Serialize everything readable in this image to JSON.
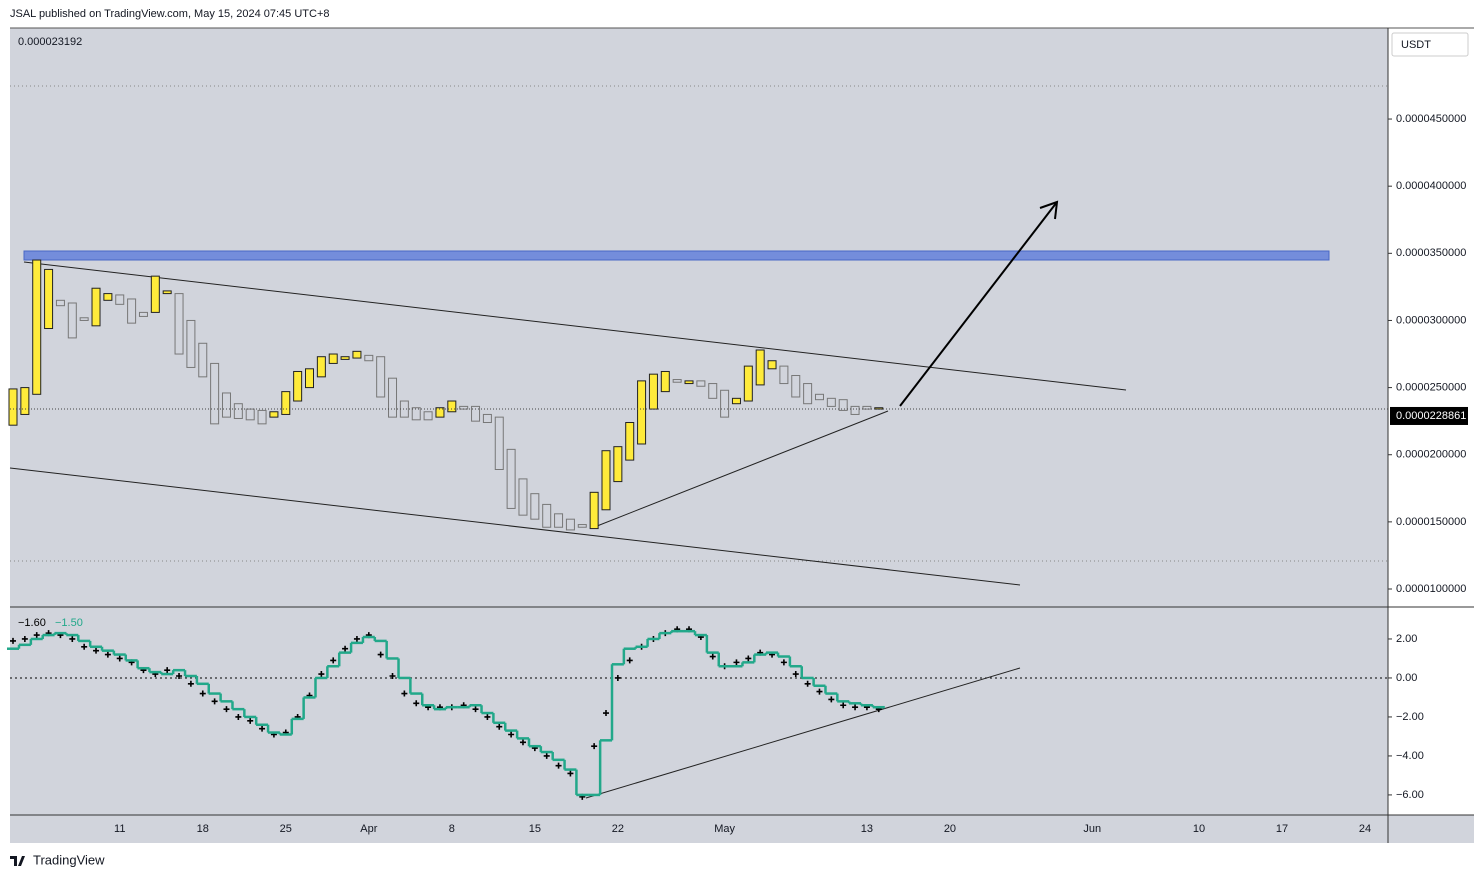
{
  "header": "JSAL published on TradingView.com, May 15, 2024 07:45 UTC+8",
  "footer": "TradingView",
  "chart_data": [
    {
      "type": "candlestick",
      "ohlc_text": "0.000023192",
      "currency": "USDT",
      "categories": [
        null,
        null,
        null,
        null,
        null,
        null,
        null,
        null,
        null,
        "11",
        null,
        null,
        null,
        null,
        null,
        null,
        "18",
        null,
        null,
        null,
        null,
        null,
        null,
        "25",
        null,
        null,
        null,
        null,
        null,
        null,
        "Apr",
        null,
        null,
        null,
        null,
        null,
        null,
        "8",
        null,
        null,
        null,
        null,
        null,
        null,
        "15",
        null,
        null,
        null,
        null,
        null,
        null,
        "22",
        null,
        null,
        null,
        null,
        null,
        null,
        null,
        null,
        "May",
        null,
        null,
        null,
        null,
        null,
        null,
        null,
        null,
        null,
        null,
        null,
        "13",
        null
      ],
      "future_labels": [
        "20",
        "Jun",
        "10",
        "17",
        "24"
      ],
      "open": [
        2.22e-05,
        2.3e-05,
        2.45e-05,
        2.94e-05,
        3.15e-05,
        3.13e-05,
        3.02e-05,
        2.96e-05,
        3.15e-05,
        3.19e-05,
        3.16e-05,
        3.06e-05,
        3.06e-05,
        3.2e-05,
        3.2e-05,
        3e-05,
        2.83e-05,
        2.68e-05,
        2.46e-05,
        2.38e-05,
        2.34e-05,
        2.33e-05,
        2.28e-05,
        2.3e-05,
        2.4e-05,
        2.5e-05,
        2.58e-05,
        2.68e-05,
        2.71e-05,
        2.72e-05,
        2.74e-05,
        2.73e-05,
        2.57e-05,
        2.4e-05,
        2.35e-05,
        2.32e-05,
        2.28e-05,
        2.32e-05,
        2.36e-05,
        2.36e-05,
        2.3e-05,
        2.28e-05,
        2.04e-05,
        1.82e-05,
        1.71e-05,
        1.63e-05,
        1.56e-05,
        1.52e-05,
        1.48e-05,
        1.45e-05,
        1.59e-05,
        1.8e-05,
        1.96e-05,
        2.08e-05,
        2.34e-05,
        2.47e-05,
        2.56e-05,
        2.53e-05,
        2.55e-05,
        2.53e-05,
        2.48e-05,
        2.38e-05,
        2.4e-05,
        2.52e-05,
        2.64e-05,
        2.66e-05,
        2.59e-05,
        2.53e-05,
        2.45e-05,
        2.42e-05,
        2.41e-05,
        2.36e-05,
        2.36e-05,
        2.34e-05
      ],
      "close": [
        2.49e-05,
        2.5e-05,
        3.45e-05,
        3.38e-05,
        3.11e-05,
        2.87e-05,
        3e-05,
        3.24e-05,
        3.2e-05,
        3.12e-05,
        2.98e-05,
        3.03e-05,
        3.33e-05,
        3.22e-05,
        2.75e-05,
        2.65e-05,
        2.58e-05,
        2.23e-05,
        2.28e-05,
        2.27e-05,
        2.26e-05,
        2.23e-05,
        2.32e-05,
        2.47e-05,
        2.62e-05,
        2.64e-05,
        2.73e-05,
        2.75e-05,
        2.73e-05,
        2.77e-05,
        2.7e-05,
        2.43e-05,
        2.28e-05,
        2.28e-05,
        2.26e-05,
        2.26e-05,
        2.35e-05,
        2.4e-05,
        2.34e-05,
        2.25e-05,
        2.24e-05,
        1.89e-05,
        1.6e-05,
        1.55e-05,
        1.52e-05,
        1.46e-05,
        1.46e-05,
        1.44e-05,
        1.46e-05,
        1.72e-05,
        2.03e-05,
        2.06e-05,
        2.24e-05,
        2.55e-05,
        2.6e-05,
        2.62e-05,
        2.54e-05,
        2.55e-05,
        2.51e-05,
        2.42e-05,
        2.28e-05,
        2.42e-05,
        2.66e-05,
        2.78e-05,
        2.7e-05,
        2.53e-05,
        2.43e-05,
        2.38e-05,
        2.41e-05,
        2.36e-05,
        2.33e-05,
        2.3e-05,
        2.34e-05,
        2.35e-05
      ],
      "up_color": "#ffeb3b",
      "down_color": "#d1d4dc",
      "ylim": [
        8.66e-06,
        5.178e-05
      ],
      "yticks": [
        {
          "value": 1e-05,
          "label": "0.0000100000"
        },
        {
          "value": 1.5e-05,
          "label": "0.0000150000"
        },
        {
          "value": 2e-05,
          "label": "0.0000200000"
        },
        {
          "value": 2.5e-05,
          "label": "0.0000250000"
        },
        {
          "value": 3e-05,
          "label": "0.0000300000"
        },
        {
          "value": 3.5e-05,
          "label": "0.0000350000"
        },
        {
          "value": 4e-05,
          "label": "0.0000400000"
        },
        {
          "value": 4.5e-05,
          "label": "0.0000450000"
        }
      ],
      "last_price": {
        "value": 2.28861e-05,
        "label": "0.0000228861"
      },
      "grid": false
    },
    {
      "type": "step",
      "series": [
        {
          "color": "#000000",
          "style": "cross",
          "legend_value": "−1.60",
          "values": [
            1.9,
            2.0,
            2.2,
            2.3,
            2.2,
            2.0,
            1.6,
            1.4,
            1.2,
            1.0,
            0.8,
            0.4,
            0.2,
            0.4,
            0.1,
            -0.3,
            -0.8,
            -1.2,
            -1.6,
            -2.0,
            -2.2,
            -2.6,
            -2.9,
            -2.8,
            -2.0,
            -0.9,
            0.2,
            0.9,
            1.5,
            2.0,
            2.2,
            1.2,
            0.1,
            -0.8,
            -1.3,
            -1.5,
            -1.5,
            -1.5,
            -1.4,
            -1.6,
            -2.0,
            -2.5,
            -2.9,
            -3.3,
            -3.6,
            -4.0,
            -4.5,
            -4.9,
            -6.1,
            -3.5,
            -1.8,
            0.0,
            0.9,
            1.6,
            2.0,
            2.3,
            2.5,
            2.5,
            2.1,
            1.1,
            0.6,
            0.8,
            1.0,
            1.3,
            1.2,
            0.8,
            0.2,
            -0.3,
            -0.7,
            -1.1,
            -1.4,
            -1.5,
            -1.5,
            -1.6
          ]
        },
        {
          "color": "#22a88a",
          "style": "step",
          "legend_value": "−1.50",
          "values": [
            1.5,
            1.7,
            2.0,
            2.2,
            2.3,
            2.2,
            1.9,
            1.6,
            1.4,
            1.2,
            0.9,
            0.5,
            0.3,
            0.2,
            0.4,
            0.1,
            -0.3,
            -0.8,
            -1.2,
            -1.6,
            -2.0,
            -2.4,
            -2.8,
            -2.9,
            -2.1,
            -1.0,
            0.0,
            0.6,
            1.3,
            1.8,
            2.1,
            1.9,
            1.0,
            0.0,
            -0.8,
            -1.4,
            -1.6,
            -1.5,
            -1.5,
            -1.4,
            -1.8,
            -2.3,
            -2.7,
            -3.1,
            -3.5,
            -3.8,
            -4.2,
            -4.7,
            -6.0,
            -6.0,
            -3.2,
            0.7,
            1.5,
            1.6,
            2.0,
            2.3,
            2.4,
            2.4,
            2.2,
            1.3,
            0.6,
            0.6,
            0.8,
            1.2,
            1.3,
            1.1,
            0.6,
            0.0,
            -0.4,
            -0.8,
            -1.2,
            -1.3,
            -1.4,
            -1.5
          ]
        }
      ],
      "hline": 0,
      "ylim": [
        -7.03,
        3.64
      ],
      "yticks": [
        {
          "value": 2,
          "label": "2.00"
        },
        {
          "value": 0,
          "label": "0.00"
        },
        {
          "value": -2,
          "label": "−2.00"
        },
        {
          "value": -4,
          "label": "−4.00"
        },
        {
          "value": -6,
          "label": "−6.00"
        }
      ]
    }
  ]
}
